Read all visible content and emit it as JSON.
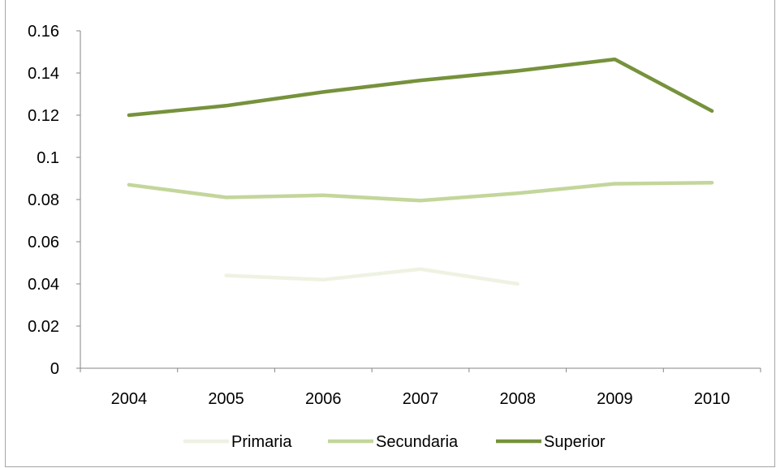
{
  "chart_data": {
    "type": "line",
    "title": "",
    "xlabel": "",
    "ylabel": "",
    "categories": [
      "2004",
      "2005",
      "2006",
      "2007",
      "2008",
      "2009",
      "2010"
    ],
    "ylim": [
      0,
      0.16
    ],
    "yticks": [
      0,
      0.02,
      0.04,
      0.06,
      0.08,
      0.1,
      0.12,
      0.14,
      0.16
    ],
    "ytick_labels": [
      "0",
      "0.02",
      "0.04",
      "0.06",
      "0.08",
      "0.1",
      "0.12",
      "0.14",
      "0.16"
    ],
    "grid": false,
    "legend_position": "bottom",
    "series": [
      {
        "name": "Primaria",
        "color": "#eef2e2",
        "values": [
          null,
          0.044,
          0.042,
          0.047,
          0.04,
          null,
          null
        ]
      },
      {
        "name": "Secundaria",
        "color": "#c3d69b",
        "values": [
          0.087,
          0.081,
          0.082,
          0.0795,
          0.083,
          0.0875,
          0.088
        ]
      },
      {
        "name": "Superior",
        "color": "#76923c",
        "values": [
          0.12,
          0.1245,
          0.131,
          0.1365,
          0.141,
          0.1465,
          0.122
        ]
      }
    ]
  }
}
